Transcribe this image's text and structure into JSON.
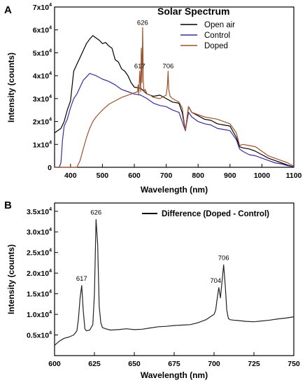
{
  "panelA": {
    "letter": "A",
    "chart_data": {
      "type": "line",
      "title": "Solar Spectrum",
      "xlabel": "Wavelength (nm)",
      "ylabel": "Intensity (counts)",
      "xlim": [
        350,
        1100
      ],
      "ylim": [
        0,
        70000
      ],
      "xticks": [
        "400",
        "500",
        "600",
        "700",
        "800",
        "900",
        "1000",
        "1100"
      ],
      "yticks": [
        {
          "base": "0",
          "exp": ""
        },
        {
          "base": "1x10",
          "exp": "4"
        },
        {
          "base": "2x10",
          "exp": "4"
        },
        {
          "base": "3x10",
          "exp": "4"
        },
        {
          "base": "4x10",
          "exp": "4"
        },
        {
          "base": "5x10",
          "exp": "4"
        },
        {
          "base": "6x10",
          "exp": "4"
        },
        {
          "base": "7x10",
          "exp": "4"
        }
      ],
      "legend_position": "top-right",
      "series": [
        {
          "name": "Open air",
          "color": "#000000",
          "x": [
            350,
            370,
            380,
            390,
            400,
            410,
            420,
            430,
            440,
            450,
            460,
            470,
            480,
            490,
            500,
            510,
            520,
            530,
            540,
            550,
            560,
            570,
            580,
            590,
            600,
            620,
            640,
            660,
            680,
            700,
            720,
            740,
            750,
            760,
            770,
            780,
            800,
            820,
            840,
            860,
            880,
            900,
            920,
            930,
            940,
            960,
            980,
            1000,
            1020,
            1040,
            1060,
            1080,
            1100
          ],
          "y": [
            15000,
            17000,
            20000,
            25000,
            29000,
            42000,
            45000,
            48000,
            51000,
            54000,
            56000,
            57500,
            56500,
            55500,
            54000,
            54500,
            53000,
            52000,
            47000,
            46000,
            43000,
            42000,
            40000,
            37000,
            35000,
            34500,
            32000,
            31000,
            31500,
            30000,
            28500,
            28000,
            24000,
            16000,
            26500,
            24000,
            22500,
            21000,
            20500,
            19000,
            18500,
            18000,
            13000,
            9000,
            8500,
            8000,
            7000,
            5500,
            4000,
            3000,
            2000,
            1000,
            200
          ]
        },
        {
          "name": "Control",
          "color": "#3a2c9a",
          "x": [
            350,
            365,
            370,
            375,
            380,
            390,
            400,
            410,
            420,
            440,
            460,
            480,
            500,
            520,
            540,
            560,
            580,
            600,
            620,
            640,
            660,
            680,
            700,
            720,
            740,
            750,
            760,
            770,
            780,
            800,
            820,
            840,
            860,
            880,
            900,
            920,
            930,
            940,
            960,
            980,
            1000,
            1020,
            1040,
            1060,
            1080,
            1100
          ],
          "y": [
            0,
            0,
            2000,
            12000,
            18000,
            21000,
            26000,
            30000,
            32000,
            38000,
            41000,
            40000,
            38500,
            37500,
            36000,
            34000,
            33000,
            32000,
            31500,
            30000,
            28000,
            27000,
            26500,
            25000,
            24000,
            20000,
            16000,
            24000,
            22000,
            20000,
            19000,
            18500,
            17000,
            16500,
            16000,
            12000,
            8000,
            7000,
            5500,
            5000,
            4000,
            3000,
            2000,
            1500,
            700,
            200
          ]
        },
        {
          "name": "Doped",
          "color": "#a0522d",
          "x": [
            350,
            420,
            430,
            440,
            450,
            460,
            470,
            480,
            500,
            520,
            540,
            560,
            580,
            600,
            610,
            612,
            614,
            617,
            620,
            622,
            624,
            626,
            628,
            630,
            634,
            640,
            650,
            660,
            680,
            700,
            704,
            706,
            708,
            712,
            720,
            740,
            750,
            760,
            770,
            780,
            800,
            820,
            840,
            860,
            880,
            900,
            920,
            930,
            940,
            960,
            980,
            1000,
            1020,
            1040,
            1060,
            1080,
            1100
          ],
          "y": [
            0,
            0,
            3000,
            8000,
            13000,
            17000,
            20000,
            22000,
            25000,
            27500,
            29000,
            30500,
            31500,
            32500,
            33000,
            36000,
            32000,
            42000,
            33000,
            52000,
            37000,
            61000,
            38000,
            33000,
            34000,
            32000,
            31500,
            30500,
            30000,
            31500,
            36000,
            42000,
            34000,
            31000,
            30000,
            28500,
            26000,
            16000,
            26500,
            24000,
            23000,
            22000,
            21500,
            21000,
            20000,
            19000,
            15000,
            9500,
            10000,
            9500,
            9000,
            7000,
            5000,
            4000,
            3000,
            2000,
            500
          ]
        }
      ],
      "annotations": [
        {
          "text": "626",
          "x": 626,
          "y": 61000
        },
        {
          "text": "617",
          "x": 617,
          "y": 42000
        },
        {
          "text": "706",
          "x": 706,
          "y": 42000
        }
      ]
    }
  },
  "panelB": {
    "letter": "B",
    "chart_data": {
      "type": "line",
      "title": "",
      "xlabel": "Wavelength (nm)",
      "ylabel": "Intensity (counts)",
      "xlim": [
        600,
        750
      ],
      "ylim": [
        0,
        37000
      ],
      "xticks": [
        "600",
        "625",
        "650",
        "675",
        "700",
        "725",
        "750"
      ],
      "yticks": [
        {
          "base": "0.5x10",
          "exp": "4"
        },
        {
          "base": "1.0x10",
          "exp": "4"
        },
        {
          "base": "1.5x10",
          "exp": "4"
        },
        {
          "base": "2.0x10",
          "exp": "4"
        },
        {
          "base": "2.5x10",
          "exp": "4"
        },
        {
          "base": "3.0x10",
          "exp": "4"
        },
        {
          "base": "3.5x10",
          "exp": "4"
        }
      ],
      "legend_position": "top-right",
      "series": [
        {
          "name": "Difference (Doped - Control)",
          "color": "#222222",
          "x": [
            600,
            603,
            606,
            609,
            612,
            614,
            615,
            616,
            617,
            618,
            619,
            620,
            622,
            624,
            625,
            626,
            627,
            628,
            629,
            630,
            632,
            635,
            640,
            645,
            650,
            655,
            660,
            665,
            670,
            675,
            680,
            685,
            690,
            695,
            698,
            700,
            701,
            702,
            703,
            704,
            705,
            706,
            707,
            708,
            709,
            710,
            712,
            715,
            720,
            725,
            730,
            735,
            740,
            745,
            750
          ],
          "y": [
            2500,
            3500,
            4200,
            4500,
            5000,
            6000,
            9000,
            14000,
            17000,
            11000,
            6500,
            6000,
            6200,
            7500,
            15000,
            33000,
            27000,
            12000,
            8000,
            6800,
            6500,
            6200,
            6300,
            6500,
            6300,
            6400,
            6700,
            7000,
            7100,
            7300,
            7400,
            7500,
            8000,
            8700,
            9500,
            10000,
            11000,
            14000,
            16500,
            14000,
            18000,
            22000,
            17000,
            11000,
            9000,
            8700,
            8600,
            8500,
            8300,
            8200,
            8400,
            8600,
            8900,
            9100,
            9400
          ]
        }
      ],
      "annotations": [
        {
          "text": "626",
          "x": 626,
          "y": 33500
        },
        {
          "text": "617",
          "x": 617,
          "y": 17500
        },
        {
          "text": "704",
          "x": 701,
          "y": 17000
        },
        {
          "text": "706",
          "x": 706,
          "y": 22500
        }
      ]
    }
  }
}
